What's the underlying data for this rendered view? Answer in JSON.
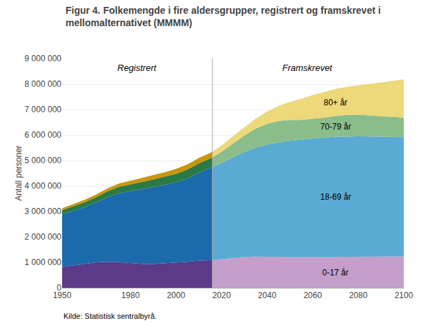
{
  "chart_data": {
    "type": "area",
    "stacked": true,
    "title": "Figur 4. Folkemengde i fire aldersgrupper, registrert og framskrevet i\nmellomalternativet (MMMM)",
    "ylabel": "Antall personer",
    "source": "Kilde: Statistisk sentralbyrå.",
    "annotations": [
      "Registrert",
      "Framskrevet"
    ],
    "grid": "y",
    "xlim": [
      1950,
      2100
    ],
    "xticks": [
      1950,
      1980,
      2000,
      2020,
      2040,
      2060,
      2080,
      2100
    ],
    "ylim": [
      0,
      9000000
    ],
    "yticks": [
      0,
      {
        "value": 1000000,
        "label": "1 000 000"
      },
      {
        "value": 2000000,
        "label": "2 000 000"
      },
      {
        "value": 3000000,
        "label": "3 000 000"
      },
      {
        "value": 4000000,
        "label": "4 000 000"
      },
      {
        "value": 5000000,
        "label": "5 000 000"
      },
      {
        "value": 6000000,
        "label": "6 000 000"
      },
      {
        "value": 7000000,
        "label": "7 000 000"
      },
      {
        "value": 8000000,
        "label": "8 000 000"
      },
      {
        "value": 9000000,
        "label": "9 000 000"
      }
    ],
    "series": [
      {
        "name": "0-17 år",
        "color": "#5B3A8A",
        "x": [
          1950,
          1955,
          1960,
          1965,
          1970,
          1975,
          1980,
          1985,
          1990,
          1995,
          2000,
          2005,
          2010,
          2015,
          2016
        ],
        "values": [
          820000,
          870000,
          940000,
          1000000,
          1020000,
          1010000,
          970000,
          940000,
          930000,
          950000,
          990000,
          1020000,
          1070000,
          1080000,
          1085000
        ]
      },
      {
        "name": "18-69 år",
        "color": "#1B6AAB",
        "x": [
          1950,
          1955,
          1960,
          1965,
          1970,
          1975,
          1980,
          1985,
          1990,
          1995,
          2000,
          2005,
          2010,
          2015,
          2016
        ],
        "values": [
          2060000,
          2150000,
          2230000,
          2350000,
          2540000,
          2700000,
          2830000,
          2930000,
          3030000,
          3090000,
          3150000,
          3270000,
          3450000,
          3620000,
          3660000
        ]
      },
      {
        "name": "70-79 år",
        "color": "#2B7A45",
        "x": [
          1950,
          1955,
          1960,
          1965,
          1970,
          1975,
          1980,
          1985,
          1990,
          1995,
          2000,
          2005,
          2010,
          2015,
          2016
        ],
        "values": [
          165000,
          180000,
          195000,
          210000,
          230000,
          255000,
          270000,
          285000,
          295000,
          315000,
          335000,
          355000,
          365000,
          375000,
          378000
        ]
      },
      {
        "name": "80+ år",
        "color": "#C8960A",
        "x": [
          1950,
          1955,
          1960,
          1965,
          1970,
          1975,
          1980,
          1985,
          1990,
          1995,
          2000,
          2005,
          2010,
          2015,
          2016
        ],
        "values": [
          75000,
          85000,
          95000,
          105000,
          115000,
          128000,
          142000,
          158000,
          168000,
          178000,
          192000,
          202000,
          208000,
          215000,
          217000
        ]
      },
      {
        "name": "0-17 år",
        "color": "#C49FCC",
        "x": [
          2016,
          2020,
          2025,
          2030,
          2035,
          2040,
          2045,
          2050,
          2055,
          2060,
          2065,
          2070,
          2075,
          2080,
          2085,
          2090,
          2095,
          2100
        ],
        "values": [
          1085000,
          1120000,
          1170000,
          1210000,
          1220000,
          1210000,
          1200000,
          1200000,
          1200000,
          1205000,
          1210000,
          1215000,
          1220000,
          1225000,
          1230000,
          1230000,
          1230000,
          1230000
        ]
      },
      {
        "name": "18-69 år",
        "color": "#5AAAD4",
        "x": [
          2016,
          2020,
          2025,
          2030,
          2035,
          2040,
          2045,
          2050,
          2055,
          2060,
          2065,
          2070,
          2075,
          2080,
          2085,
          2090,
          2095,
          2100
        ],
        "values": [
          3660000,
          3780000,
          3950000,
          4120000,
          4280000,
          4410000,
          4510000,
          4580000,
          4620000,
          4660000,
          4690000,
          4710000,
          4720000,
          4720000,
          4710000,
          4700000,
          4690000,
          4680000
        ]
      },
      {
        "name": "70-79 år",
        "color": "#8ABD8A",
        "x": [
          2016,
          2020,
          2025,
          2030,
          2035,
          2040,
          2045,
          2050,
          2055,
          2060,
          2065,
          2070,
          2075,
          2080,
          2085,
          2090,
          2095,
          2100
        ],
        "values": [
          378000,
          440000,
          545000,
          650000,
          750000,
          820000,
          840000,
          810000,
          770000,
          760000,
          780000,
          820000,
          850000,
          850000,
          830000,
          800000,
          780000,
          770000
        ]
      },
      {
        "name": "80+ år",
        "color": "#EDD87A",
        "x": [
          2016,
          2020,
          2025,
          2030,
          2035,
          2040,
          2045,
          2050,
          2055,
          2060,
          2065,
          2070,
          2075,
          2080,
          2085,
          2090,
          2095,
          2100
        ],
        "values": [
          217000,
          245000,
          285000,
          330000,
          395000,
          480000,
          590000,
          710000,
          830000,
          940000,
          1010000,
          1060000,
          1100000,
          1160000,
          1240000,
          1330000,
          1420000,
          1500000
        ]
      }
    ]
  }
}
